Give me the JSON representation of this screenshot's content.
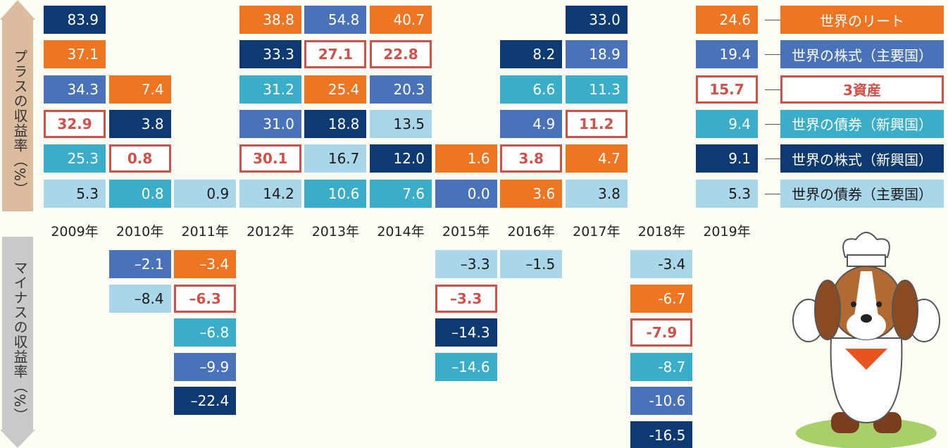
{
  "axis_labels": {
    "positive": "プラスの収益率（%）",
    "negative": "マイナスの収益率（%）"
  },
  "assets": [
    {
      "name": "世界のリート",
      "value": "24.6",
      "color": "#ee7623",
      "text_color": "#ffffff"
    },
    {
      "name": "世界の株式（主要国）",
      "value": "19.4",
      "color": "#4a72b8",
      "text_color": "#ffffff"
    },
    {
      "name": "3資産",
      "value": "15.7",
      "color": "#ffffff",
      "text_color": "#d0504a",
      "border": "#d0504a"
    },
    {
      "name": "世界の債券（新興国）",
      "value": "9.4",
      "color": "#3aaec8",
      "text_color": "#ffffff"
    },
    {
      "name": "世界の株式（新興国）",
      "value": "9.1",
      "color": "#0d3a70",
      "text_color": "#ffffff"
    },
    {
      "name": "世界の債券（主要国）",
      "value": "5.3",
      "color": "#a9d6e8",
      "text_color": "#1a1a1a"
    }
  ],
  "legend_year": "2019年",
  "columns": [
    {
      "year": "2009年",
      "positive": [
        {
          "text": "83.9",
          "asset": "世界の株式（新興国）"
        },
        {
          "text": "37.1",
          "asset": "世界のリート"
        },
        {
          "text": "34.3",
          "asset": "世界の株式（主要国）"
        },
        {
          "text": "32.9",
          "asset": "3資産"
        },
        {
          "text": "25.3",
          "asset": "世界の債券（新興国）"
        },
        {
          "text": "5.3",
          "asset": "世界の債券（主要国）"
        }
      ],
      "negative": []
    },
    {
      "year": "2010年",
      "positive": [
        {
          "text": "7.4",
          "asset": "世界のリート"
        },
        {
          "text": "3.8",
          "asset": "世界の株式（新興国）"
        },
        {
          "text": "0.8",
          "asset": "3資産"
        },
        {
          "text": "0.8",
          "asset": "世界の債券（新興国）"
        }
      ],
      "negative": [
        {
          "text": "–2.1",
          "asset": "世界の株式（主要国）"
        },
        {
          "text": "–8.4",
          "asset": "世界の債券（主要国）"
        }
      ]
    },
    {
      "year": "2011年",
      "positive": [
        {
          "text": "0.9",
          "asset": "世界の債券（主要国）"
        }
      ],
      "negative": [
        {
          "text": "–3.4",
          "asset": "世界のリート"
        },
        {
          "text": "–6.3",
          "asset": "3資産"
        },
        {
          "text": "–6.8",
          "asset": "世界の債券（新興国）"
        },
        {
          "text": "–9.9",
          "asset": "世界の株式（主要国）"
        },
        {
          "text": "–22.4",
          "asset": "世界の株式（新興国）"
        }
      ]
    },
    {
      "year": "2012年",
      "positive": [
        {
          "text": "38.8",
          "asset": "世界のリート"
        },
        {
          "text": "33.3",
          "asset": "世界の株式（新興国）"
        },
        {
          "text": "31.2",
          "asset": "世界の債券（新興国）"
        },
        {
          "text": "31.0",
          "asset": "世界の株式（主要国）"
        },
        {
          "text": "30.1",
          "asset": "3資産"
        },
        {
          "text": "14.2",
          "asset": "世界の債券（主要国）"
        }
      ],
      "negative": []
    },
    {
      "year": "2013年",
      "positive": [
        {
          "text": "54.8",
          "asset": "世界の株式（主要国）"
        },
        {
          "text": "27.1",
          "asset": "3資産"
        },
        {
          "text": "25.4",
          "asset": "世界のリート"
        },
        {
          "text": "18.8",
          "asset": "世界の株式（新興国）"
        },
        {
          "text": "16.7",
          "asset": "世界の債券（主要国）"
        },
        {
          "text": "10.6",
          "asset": "世界の債券（新興国）"
        }
      ],
      "negative": []
    },
    {
      "year": "2014年",
      "positive": [
        {
          "text": "40.7",
          "asset": "世界のリート"
        },
        {
          "text": "22.8",
          "asset": "3資産"
        },
        {
          "text": "20.3",
          "asset": "世界の株式（主要国）"
        },
        {
          "text": "13.5",
          "asset": "世界の債券（主要国）"
        },
        {
          "text": "12.0",
          "asset": "世界の株式（新興国）"
        },
        {
          "text": "7.6",
          "asset": "世界の債券（新興国）"
        }
      ],
      "negative": []
    },
    {
      "year": "2015年",
      "positive": [
        {
          "text": "1.6",
          "asset": "世界のリート"
        },
        {
          "text": "0.0",
          "asset": "世界の株式（主要国）"
        }
      ],
      "negative": [
        {
          "text": "–3.3",
          "asset": "世界の債券（主要国）"
        },
        {
          "text": "–3.3",
          "asset": "3資産"
        },
        {
          "text": "–14.3",
          "asset": "世界の株式（新興国）"
        },
        {
          "text": "–14.6",
          "asset": "世界の債券（新興国）"
        }
      ]
    },
    {
      "year": "2016年",
      "positive": [
        {
          "text": "8.2",
          "asset": "世界の株式（新興国）"
        },
        {
          "text": "6.6",
          "asset": "世界の債券（新興国）"
        },
        {
          "text": "4.9",
          "asset": "世界の株式（主要国）"
        },
        {
          "text": "3.8",
          "asset": "3資産"
        },
        {
          "text": "3.6",
          "asset": "世界のリート"
        }
      ],
      "negative": [
        {
          "text": "–1.5",
          "asset": "世界の債券（主要国）"
        }
      ]
    },
    {
      "year": "2017年",
      "positive": [
        {
          "text": "33.0",
          "asset": "世界の株式（新興国）"
        },
        {
          "text": "18.9",
          "asset": "世界の株式（主要国）"
        },
        {
          "text": "11.3",
          "asset": "世界の債券（新興国）"
        },
        {
          "text": "11.2",
          "asset": "3資産"
        },
        {
          "text": "4.7",
          "asset": "世界のリート"
        },
        {
          "text": "3.8",
          "asset": "世界の債券（主要国）"
        }
      ],
      "negative": []
    },
    {
      "year": "2018年",
      "positive": [],
      "negative": [
        {
          "text": "-3.4",
          "asset": "世界の債券（主要国）"
        },
        {
          "text": "-6.7",
          "asset": "世界のリート"
        },
        {
          "text": "-7.9",
          "asset": "3資産"
        },
        {
          "text": "-8.7",
          "asset": "世界の債券（新興国）"
        },
        {
          "text": "-10.6",
          "asset": "世界の株式（主要国）"
        },
        {
          "text": "-16.5",
          "asset": "世界の株式（新興国）"
        }
      ]
    }
  ]
}
